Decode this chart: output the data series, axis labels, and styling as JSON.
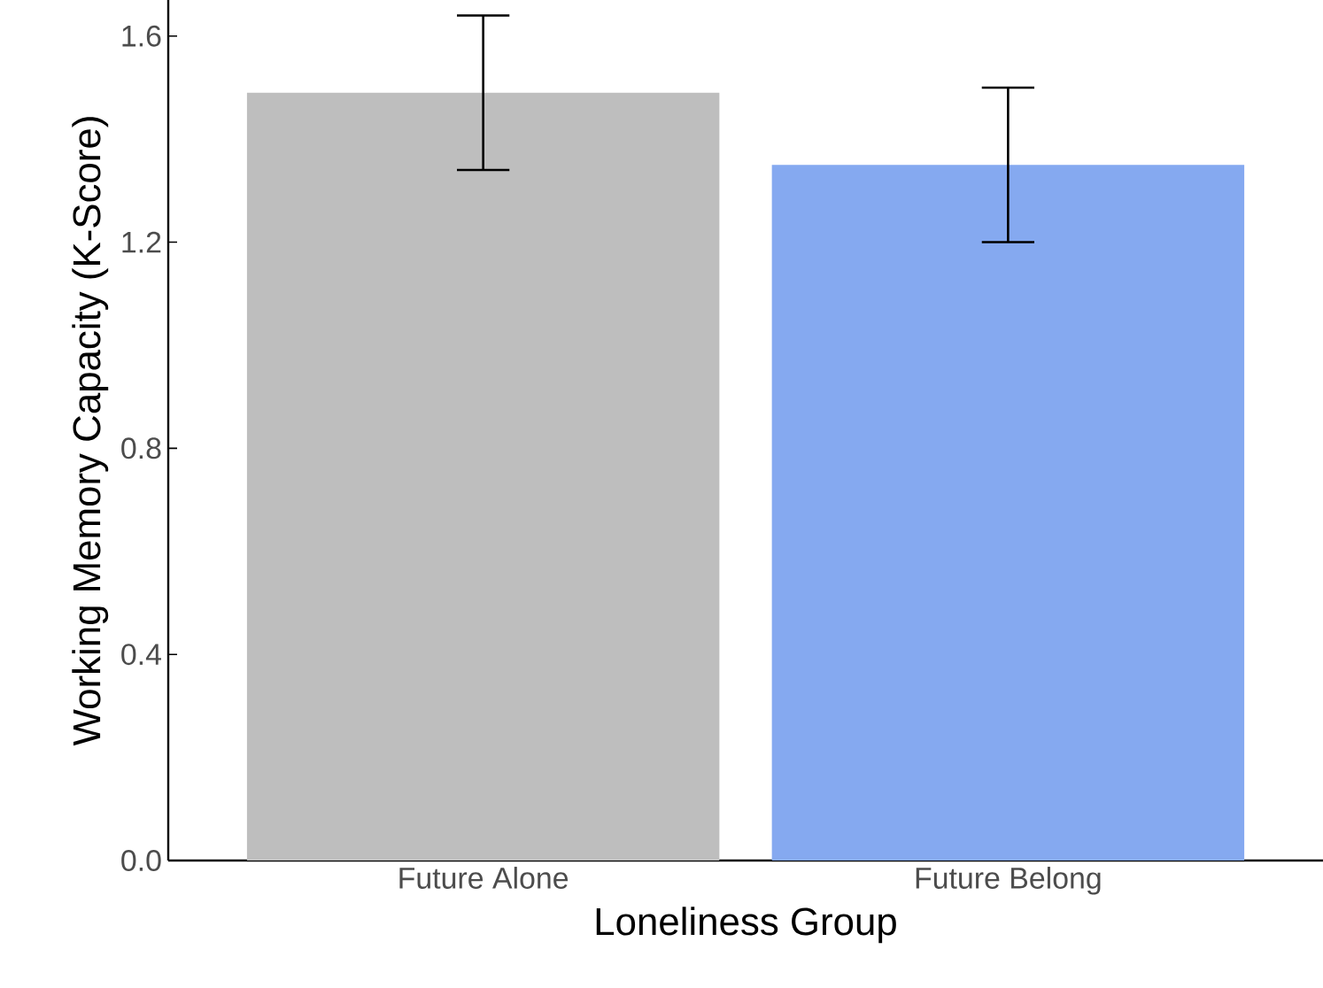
{
  "chart_data": {
    "type": "bar",
    "xlabel": "Loneliness Group",
    "ylabel": "Working Memory Capacity (K-Score)",
    "categories": [
      "Future Alone",
      "Future Belong"
    ],
    "values": [
      1.49,
      1.35
    ],
    "colors": [
      "#bebebe",
      "#85a9f0"
    ],
    "errors": [
      [
        1.34,
        1.64
      ],
      [
        1.2,
        1.5
      ]
    ],
    "ylim": [
      0,
      1.67
    ],
    "yticks": [
      {
        "value": 0,
        "label": "0.0"
      },
      {
        "value": 0.4,
        "label": "0.4"
      },
      {
        "value": 0.8,
        "label": "0.8"
      },
      {
        "value": 1.2,
        "label": "1.2"
      },
      {
        "value": 1.6,
        "label": "1.6"
      }
    ],
    "grid": false
  }
}
